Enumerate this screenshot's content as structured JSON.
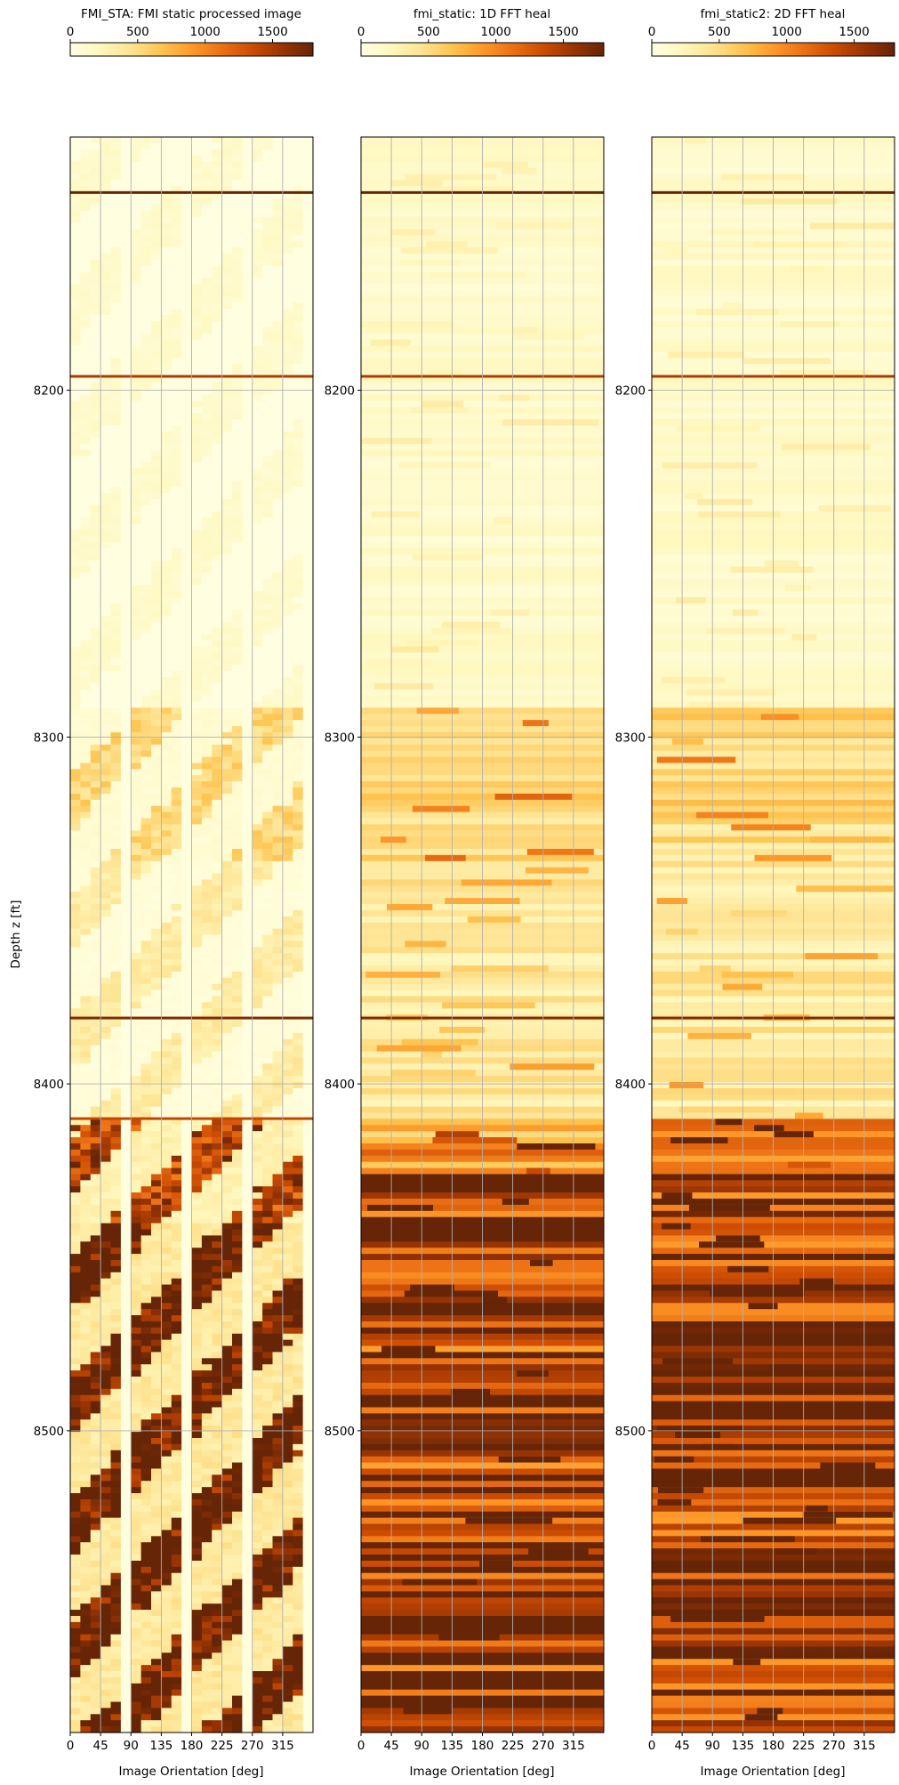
{
  "figure": {
    "ylabel": "Depth z [ft]",
    "xlabel": "Image Orientation [deg]"
  },
  "chart_data": [
    {
      "type": "heatmap",
      "title": "FMI_STA: FMI static processed image",
      "colormap": "YlOrBr",
      "colorbar": {
        "ticks": [
          0,
          500,
          1000,
          1500
        ],
        "range": [
          0,
          1800
        ]
      },
      "xlabel": "Image Orientation [deg]",
      "ylabel": "Depth z [ft]",
      "xlim": [
        0,
        360
      ],
      "xticks": [
        0,
        45,
        90,
        135,
        180,
        225,
        270,
        315
      ],
      "ylim": [
        8127,
        8587
      ],
      "yticks": [
        8200,
        8300,
        8400,
        8500
      ],
      "grid": true,
      "pattern": "sinusoidal",
      "events": [
        {
          "depth": 8143,
          "level": 1800
        },
        {
          "depth": 8196,
          "level": 1500
        },
        {
          "depth": 8381,
          "level": 1700
        },
        {
          "depth": 8410,
          "level": 1400
        }
      ],
      "zones": [
        {
          "from": 8127,
          "to": 8290,
          "level": 120
        },
        {
          "from": 8290,
          "to": 8335,
          "level": 450
        },
        {
          "from": 8335,
          "to": 8410,
          "level": 300
        },
        {
          "from": 8410,
          "to": 8440,
          "level": 1200
        },
        {
          "from": 8440,
          "to": 8587,
          "level": 1600
        }
      ]
    },
    {
      "type": "heatmap",
      "title": "fmi_static: 1D FFT heal",
      "colormap": "YlOrBr",
      "colorbar": {
        "ticks": [
          0,
          500,
          1000,
          1500
        ],
        "range": [
          0,
          1800
        ]
      },
      "xlabel": "Image Orientation [deg]",
      "ylabel": "",
      "xlim": [
        0,
        360
      ],
      "xticks": [
        0,
        45,
        90,
        135,
        180,
        225,
        270,
        315
      ],
      "ylim": [
        8127,
        8587
      ],
      "yticks": [
        8200,
        8300,
        8400,
        8500
      ],
      "grid": true,
      "pattern": "horizontal",
      "events": [
        {
          "depth": 8143,
          "level": 1800
        },
        {
          "depth": 8196,
          "level": 1500
        },
        {
          "depth": 8381,
          "level": 1700
        },
        {
          "depth": 8427,
          "level": 1800
        }
      ],
      "zones": [
        {
          "from": 8127,
          "to": 8290,
          "level": 150
        },
        {
          "from": 8290,
          "to": 8335,
          "level": 500
        },
        {
          "from": 8335,
          "to": 8410,
          "level": 380
        },
        {
          "from": 8410,
          "to": 8425,
          "level": 900
        },
        {
          "from": 8425,
          "to": 8587,
          "level": 1550
        }
      ]
    },
    {
      "type": "heatmap",
      "title": "fmi_static2: 2D FFT heal",
      "colormap": "YlOrBr",
      "colorbar": {
        "ticks": [
          0,
          500,
          1000,
          1500
        ],
        "range": [
          0,
          1800
        ]
      },
      "xlabel": "Image Orientation [deg]",
      "ylabel": "",
      "xlim": [
        0,
        360
      ],
      "xticks": [
        0,
        45,
        90,
        135,
        180,
        225,
        270,
        315
      ],
      "ylim": [
        8127,
        8587
      ],
      "yticks": [
        8200,
        8300,
        8400,
        8500
      ],
      "grid": true,
      "pattern": "horizontal",
      "events": [
        {
          "depth": 8143,
          "level": 1800
        },
        {
          "depth": 8196,
          "level": 1500
        },
        {
          "depth": 8381,
          "level": 1700
        },
        {
          "depth": 8427,
          "level": 1800
        }
      ],
      "zones": [
        {
          "from": 8127,
          "to": 8290,
          "level": 150
        },
        {
          "from": 8290,
          "to": 8335,
          "level": 500
        },
        {
          "from": 8335,
          "to": 8410,
          "level": 380
        },
        {
          "from": 8410,
          "to": 8425,
          "level": 900
        },
        {
          "from": 8425,
          "to": 8587,
          "level": 1550
        }
      ]
    }
  ]
}
